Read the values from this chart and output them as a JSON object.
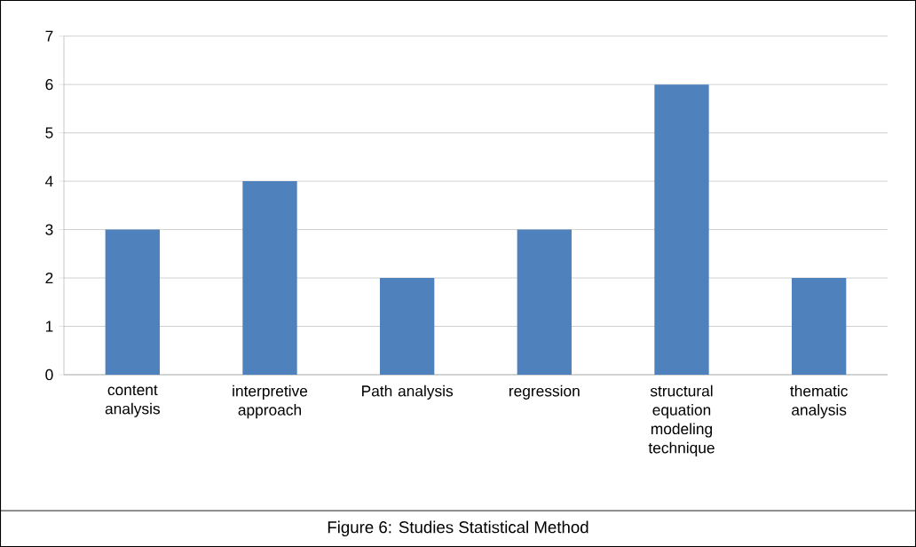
{
  "chart_data": {
    "type": "bar",
    "categories": [
      "content analysis",
      "interpretive approach",
      "Path analysis",
      "regression",
      "structural equation modeling technique",
      "thematic analysis"
    ],
    "values": [
      3,
      4,
      2,
      3,
      6,
      2
    ],
    "color": "#4f81bd",
    "ylim": [
      0,
      7
    ],
    "yticks": [
      0,
      1,
      2,
      3,
      4,
      5,
      6,
      7
    ],
    "grid": "y",
    "annotations": [
      "Figure 6: Studies Statistical Method"
    ]
  }
}
